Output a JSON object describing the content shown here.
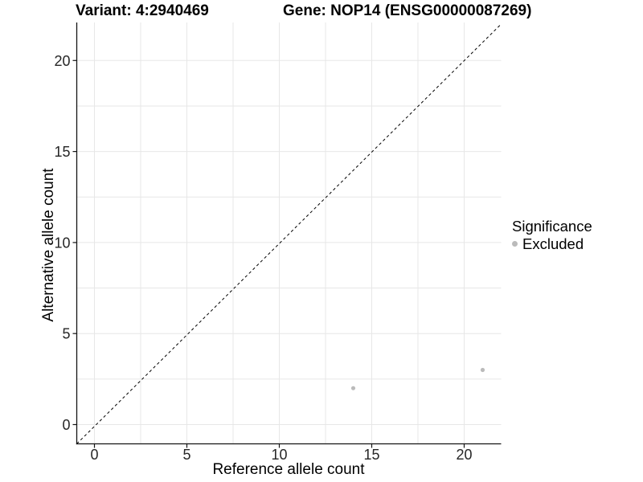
{
  "titles": {
    "variant": "Variant: 4:2940469",
    "gene": "Gene: NOP14 (ENSG00000087269)"
  },
  "axes": {
    "x_label": "Reference allele count",
    "y_label": "Alternative allele count",
    "x_ticks": [
      "0",
      "5",
      "10",
      "15",
      "20"
    ],
    "y_ticks": [
      "0",
      "5",
      "10",
      "15",
      "20"
    ]
  },
  "legend": {
    "title": "Significance",
    "items": [
      {
        "label": "Excluded",
        "color": "#bbbbbb"
      }
    ]
  },
  "chart_data": {
    "type": "scatter",
    "title_left": "Variant: 4:2940469",
    "title_right": "Gene: NOP14 (ENSG00000087269)",
    "xlabel": "Reference allele count",
    "ylabel": "Alternative allele count",
    "xlim": [
      -1.05,
      22.05
    ],
    "ylim": [
      -1.05,
      22.05
    ],
    "x_tick_values": [
      0,
      5,
      10,
      15,
      20
    ],
    "y_tick_values": [
      0,
      5,
      10,
      15,
      20
    ],
    "grid": true,
    "grid_interval": 2.5,
    "legend_position": "right",
    "series": [
      {
        "name": "Excluded",
        "color": "#bbbbbb",
        "points": [
          [
            14,
            2
          ],
          [
            21,
            3
          ]
        ]
      }
    ],
    "reference_line": {
      "equation": "y = x",
      "style": "dashed",
      "color": "#000000"
    }
  },
  "colors": {
    "background": "#ffffff",
    "grid": "#e7e7e7",
    "axis": "#141414",
    "tick_text": "#262626",
    "point": "#bbbbbb",
    "reference_line": "#000000"
  }
}
